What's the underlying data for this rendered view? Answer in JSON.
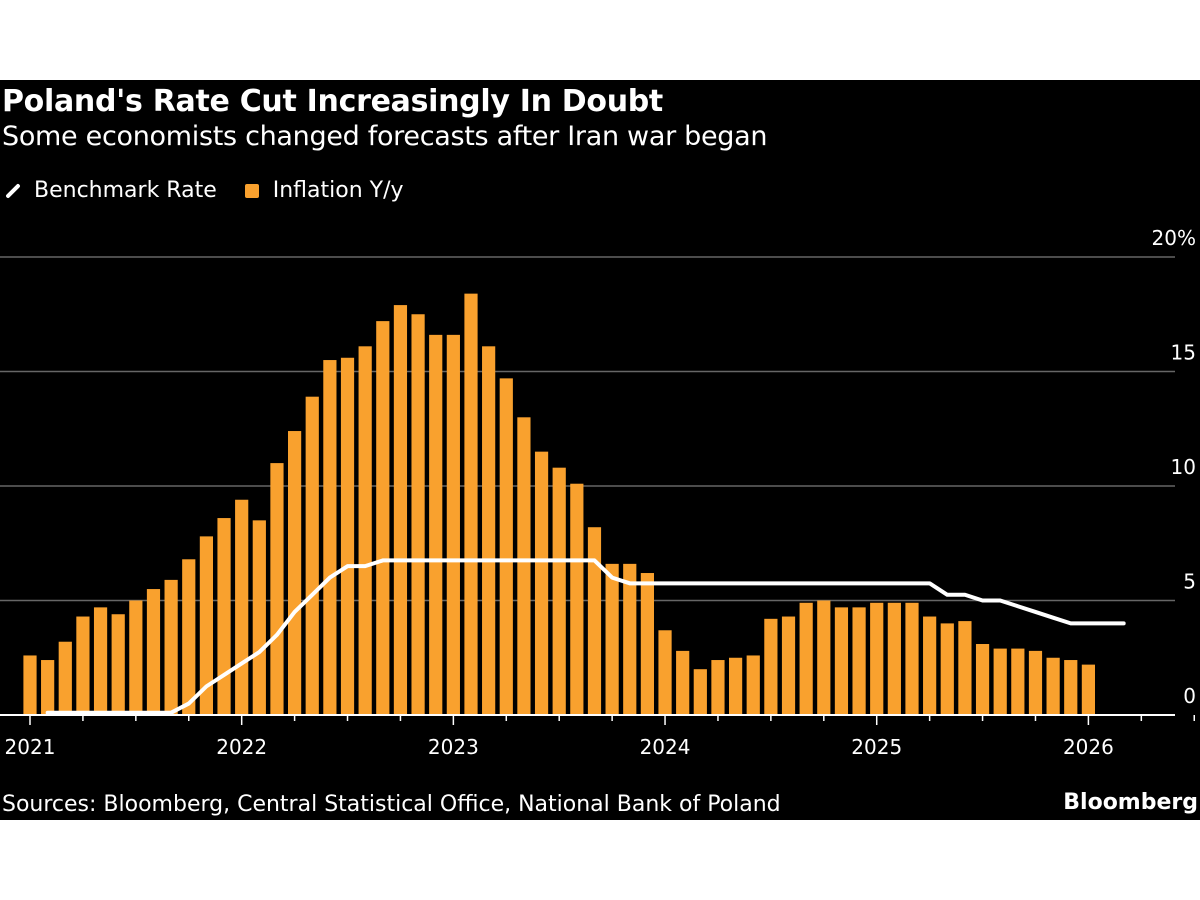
{
  "header": {
    "title": "Poland's Rate Cut Increasingly In Doubt",
    "subtitle": "Some economists changed forecasts after Iran war began"
  },
  "footer": {
    "source": "Sources: Bloomberg, Central Statistical Office, National Bank of Poland",
    "brand": "Bloomberg"
  },
  "colors": {
    "background": "#000000",
    "bars": "#f9a12e",
    "line": "#ffffff",
    "grid": "#666666"
  },
  "chart_data": {
    "type": "bar",
    "title": "Poland's Rate Cut Increasingly In Doubt",
    "subtitle": "Some economists changed forecasts after Iran war began",
    "legend_position": "top-left",
    "grid": true,
    "ylim": [
      0,
      20
    ],
    "y_ticks": [
      "0",
      "5",
      "10",
      "15",
      "20%"
    ],
    "y_tick_values": [
      0,
      5,
      10,
      15,
      20
    ],
    "x_ticks": [
      "2021",
      "2022",
      "2023",
      "2024",
      "2025",
      "2026"
    ],
    "series": [
      {
        "name": "Inflation Y/y",
        "type": "bar",
        "color": "#f9a12e",
        "start": "2021-01",
        "values": [
          2.6,
          2.4,
          3.2,
          4.3,
          4.7,
          4.4,
          5.0,
          5.5,
          5.9,
          6.8,
          7.8,
          8.6,
          9.4,
          8.5,
          11.0,
          12.4,
          13.9,
          15.5,
          15.6,
          16.1,
          17.2,
          17.9,
          17.5,
          16.6,
          16.6,
          18.4,
          16.1,
          14.7,
          13.0,
          11.5,
          10.8,
          10.1,
          8.2,
          6.6,
          6.6,
          6.2,
          3.7,
          2.8,
          2.0,
          2.4,
          2.5,
          2.6,
          4.2,
          4.3,
          4.9,
          5.0,
          4.7,
          4.7,
          4.9,
          4.9,
          4.9,
          4.3,
          4.0,
          4.1,
          3.1,
          2.9,
          2.9,
          2.8,
          2.5,
          2.4,
          2.2
        ]
      },
      {
        "name": "Benchmark Rate",
        "type": "line",
        "color": "#ffffff",
        "start": "2021-02",
        "values": [
          0.1,
          0.1,
          0.1,
          0.1,
          0.1,
          0.1,
          0.1,
          0.1,
          0.5,
          1.25,
          1.75,
          2.25,
          2.75,
          3.5,
          4.5,
          5.25,
          6.0,
          6.5,
          6.5,
          6.75,
          6.75,
          6.75,
          6.75,
          6.75,
          6.75,
          6.75,
          6.75,
          6.75,
          6.75,
          6.75,
          6.75,
          6.75,
          6.0,
          5.75,
          5.75,
          5.75,
          5.75,
          5.75,
          5.75,
          5.75,
          5.75,
          5.75,
          5.75,
          5.75,
          5.75,
          5.75,
          5.75,
          5.75,
          5.75,
          5.75,
          5.75,
          5.25,
          5.25,
          5.0,
          5.0,
          4.75,
          4.5,
          4.25,
          4.0,
          4.0,
          4.0,
          4.0
        ]
      }
    ]
  }
}
